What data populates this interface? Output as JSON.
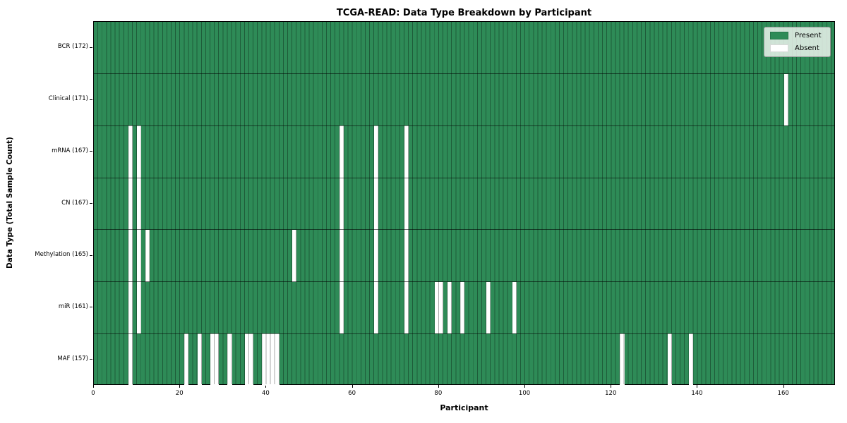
{
  "title": "TCGA-READ: Data Type Breakdown by Participant",
  "legend": {
    "present_label": "Present",
    "absent_label": "Absent"
  },
  "colors": {
    "present": "#2e8b57",
    "absent": "#ffffff",
    "cell_grid_line": "#1c5434",
    "legend_background": "#f2f6f2"
  },
  "chart_data": {
    "type": "heatmap",
    "title": "TCGA-READ: Data Type Breakdown by Participant",
    "xlabel": "Participant",
    "ylabel": "Data Type (Total Sample Count)",
    "x_range": [
      0,
      172
    ],
    "x_ticks": [
      0,
      20,
      40,
      60,
      80,
      100,
      120,
      140,
      160
    ],
    "grid": "cell-borders",
    "legend_entries": [
      "Present",
      "Absent"
    ],
    "legend_position": "upper right",
    "cell_states": [
      "present",
      "absent"
    ],
    "rows": [
      {
        "label": "BCR (172)",
        "data_type": "BCR",
        "total_samples": 172,
        "absent_participants": []
      },
      {
        "label": "Clinical (171)",
        "data_type": "Clinical",
        "total_samples": 171,
        "absent_participants": [
          160
        ]
      },
      {
        "label": "mRNA (167)",
        "data_type": "mRNA",
        "total_samples": 167,
        "absent_participants": [
          8,
          10,
          57,
          65,
          72
        ]
      },
      {
        "label": "CN (167)",
        "data_type": "CN",
        "total_samples": 167,
        "absent_participants": [
          8,
          10,
          57,
          65,
          72
        ]
      },
      {
        "label": "Methylation (165)",
        "data_type": "Methylation",
        "total_samples": 165,
        "absent_participants": [
          8,
          10,
          12,
          46,
          57,
          65,
          72
        ]
      },
      {
        "label": "miR (161)",
        "data_type": "miR",
        "total_samples": 161,
        "absent_participants": [
          8,
          10,
          57,
          65,
          72,
          79,
          80,
          82,
          85,
          91,
          97
        ]
      },
      {
        "label": "MAF (157)",
        "data_type": "MAF",
        "total_samples": 157,
        "absent_participants": [
          8,
          21,
          24,
          27,
          28,
          31,
          35,
          36,
          39,
          40,
          41,
          42,
          122,
          133,
          138
        ]
      }
    ]
  }
}
